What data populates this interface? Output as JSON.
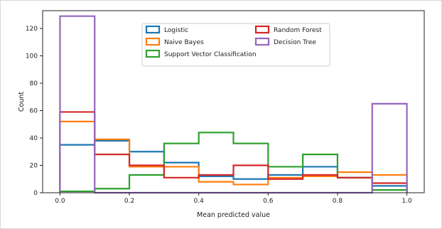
{
  "chart_data": {
    "type": "histogram-step",
    "xlabel": "Mean predicted value",
    "ylabel": "Count",
    "xlim": [
      -0.05,
      1.05
    ],
    "ylim": [
      0,
      133
    ],
    "xticks": [
      0.0,
      0.2,
      0.4,
      0.6,
      0.8,
      1.0
    ],
    "xtick_labels": [
      "0.0",
      "0.2",
      "0.4",
      "0.6",
      "0.8",
      "1.0"
    ],
    "yticks": [
      0,
      20,
      40,
      60,
      80,
      100,
      120
    ],
    "ytick_labels": [
      "0",
      "20",
      "40",
      "60",
      "80",
      "100",
      "120"
    ],
    "bin_edges": [
      0.0,
      0.1,
      0.2,
      0.3,
      0.4,
      0.5,
      0.6,
      0.7,
      0.8,
      0.9,
      1.0
    ],
    "legend_placement": "upper-center",
    "series": [
      {
        "name": "Logistic",
        "color": "#1f77b4",
        "values": [
          35,
          38,
          30,
          22,
          12,
          10,
          13,
          19,
          11,
          5
        ]
      },
      {
        "name": "Naive Bayes",
        "color": "#ff7f0e",
        "values": [
          52,
          39,
          19,
          19,
          8,
          6,
          11,
          12,
          15,
          13
        ]
      },
      {
        "name": "Support Vector Classification",
        "color": "#2ca02c",
        "values": [
          1,
          3,
          13,
          36,
          44,
          36,
          19,
          28,
          11,
          2
        ]
      },
      {
        "name": "Random Forest",
        "color": "#d62728",
        "values": [
          59,
          28,
          20,
          11,
          13,
          20,
          10,
          13,
          11,
          7
        ]
      },
      {
        "name": "Decision Tree",
        "color": "#9467bd",
        "values": [
          129,
          0,
          0,
          0,
          0,
          0,
          0,
          0,
          0,
          65
        ]
      }
    ]
  }
}
